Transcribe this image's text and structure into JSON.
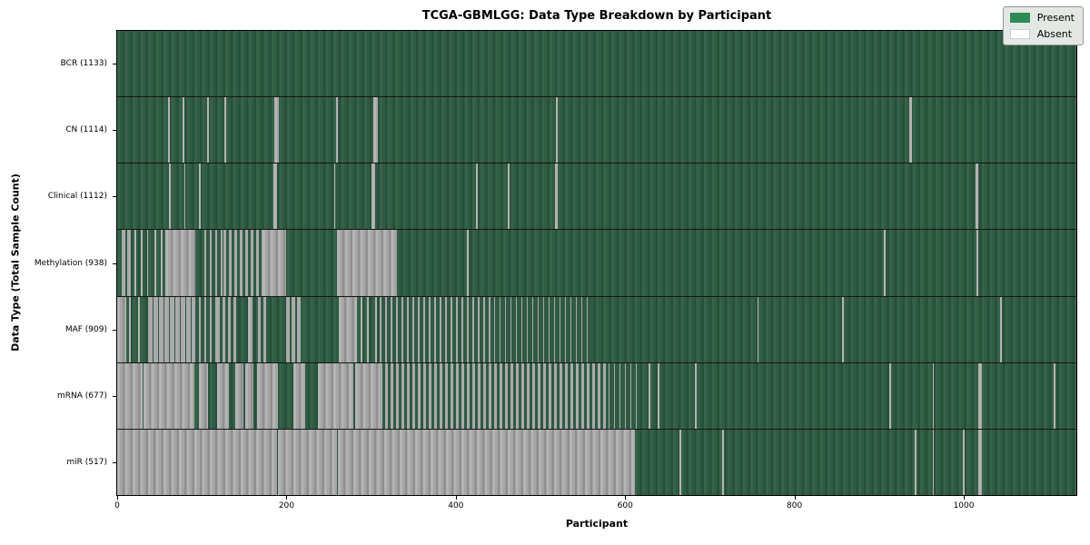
{
  "title": "TCGA-GBMLGG: Data Type Breakdown by Participant",
  "legend": {
    "items": [
      {
        "label": "Present",
        "color": "#2e8b57"
      },
      {
        "label": "Absent",
        "color": "#ffffff"
      }
    ]
  },
  "colors": {
    "present_render": "#2f5a44",
    "absent_render": "#a5a5a5",
    "row_divider": "#161616",
    "legend_bg": "#e4e8e4"
  },
  "chart_data": {
    "type": "heatmap",
    "title": "TCGA-GBMLGG: Data Type Breakdown by Participant",
    "xlabel": "Participant",
    "ylabel": "Data Type (Total Sample Count)",
    "x_range": [
      0,
      1133
    ],
    "x_ticks": [
      0,
      200,
      400,
      600,
      800,
      1000
    ],
    "legend_position": "upper right",
    "grid": false,
    "value_legend": {
      "1": "Present",
      "0": "Absent"
    },
    "rows": [
      {
        "name": "BCR",
        "label": "BCR (1133)",
        "present_count": 1133,
        "absent_segments": []
      },
      {
        "name": "CN",
        "label": "CN (1114)",
        "present_count": 1114,
        "absent_segments": [
          [
            60,
            62,
            1
          ],
          [
            77,
            79,
            1
          ],
          [
            106,
            108,
            1
          ],
          [
            127,
            129,
            1
          ],
          [
            186,
            191,
            1
          ],
          [
            259,
            261,
            1
          ],
          [
            303,
            308,
            1
          ],
          [
            518,
            520,
            1
          ],
          [
            936,
            939,
            1
          ]
        ]
      },
      {
        "name": "Clinical",
        "label": "Clinical (1112)",
        "present_count": 1112,
        "absent_segments": [
          [
            61,
            63,
            1
          ],
          [
            79,
            81,
            1
          ],
          [
            97,
            99,
            1
          ],
          [
            185,
            189,
            1
          ],
          [
            256,
            258,
            1
          ],
          [
            300,
            305,
            1
          ],
          [
            424,
            426,
            1
          ],
          [
            461,
            463,
            1
          ],
          [
            517,
            520,
            1
          ],
          [
            1014,
            1017,
            1
          ]
        ]
      },
      {
        "name": "Methylation",
        "label": "Methylation (938)",
        "present_count": 938,
        "absent_segments": [
          [
            5,
            16,
            0.6
          ],
          [
            20,
            22,
            1
          ],
          [
            28,
            30,
            1
          ],
          [
            35,
            37,
            1
          ],
          [
            44,
            46,
            1
          ],
          [
            52,
            54,
            1
          ],
          [
            57,
            92,
            1
          ],
          [
            103,
            125,
            0.25
          ],
          [
            125,
            172,
            0.5
          ],
          [
            172,
            200,
            1
          ],
          [
            260,
            330,
            1
          ],
          [
            413,
            415,
            1
          ],
          [
            906,
            908,
            1
          ],
          [
            1015,
            1017,
            1
          ]
        ]
      },
      {
        "name": "MAF",
        "label": "MAF (909)",
        "present_count": 909,
        "absent_segments": [
          [
            0,
            11,
            1
          ],
          [
            14,
            16,
            1
          ],
          [
            25,
            27,
            1
          ],
          [
            36,
            90,
            0.85
          ],
          [
            90,
            118,
            0.3
          ],
          [
            118,
            143,
            0.5
          ],
          [
            155,
            160,
            1
          ],
          [
            166,
            176,
            0.5
          ],
          [
            200,
            219,
            0.6
          ],
          [
            262,
            283,
            1
          ],
          [
            288,
            290,
            1
          ],
          [
            295,
            297,
            1
          ],
          [
            305,
            307,
            1
          ],
          [
            310,
            445,
            0.25
          ],
          [
            445,
            560,
            0.15
          ],
          [
            756,
            758,
            1
          ],
          [
            856,
            858,
            1
          ],
          [
            1043,
            1045,
            1
          ]
        ]
      },
      {
        "name": "mRNA",
        "label": "mRNA (677)",
        "present_count": 677,
        "absent_segments": [
          [
            0,
            30,
            1
          ],
          [
            31,
            91,
            0.95
          ],
          [
            97,
            107,
            1
          ],
          [
            118,
            132,
            1
          ],
          [
            140,
            149,
            1
          ],
          [
            151,
            161,
            1
          ],
          [
            165,
            190,
            1
          ],
          [
            208,
            222,
            1
          ],
          [
            237,
            279,
            1
          ],
          [
            281,
            310,
            0.95
          ],
          [
            310,
            580,
            0.5
          ],
          [
            580,
            614,
            0.12
          ],
          [
            628,
            630,
            1
          ],
          [
            638,
            640,
            1
          ],
          [
            682,
            684,
            1
          ],
          [
            912,
            914,
            1
          ],
          [
            963,
            965,
            1
          ],
          [
            1017,
            1021,
            1
          ],
          [
            1106,
            1108,
            1
          ]
        ]
      },
      {
        "name": "miR",
        "label": "miR (517)",
        "present_count": 517,
        "absent_segments": [
          [
            0,
            189,
            1
          ],
          [
            190,
            260,
            1
          ],
          [
            261,
            612,
            1
          ],
          [
            664,
            666,
            1
          ],
          [
            715,
            717,
            1
          ],
          [
            942,
            944,
            1
          ],
          [
            963,
            965,
            1
          ],
          [
            999,
            1001,
            1
          ],
          [
            1017,
            1021,
            1
          ]
        ]
      }
    ]
  }
}
